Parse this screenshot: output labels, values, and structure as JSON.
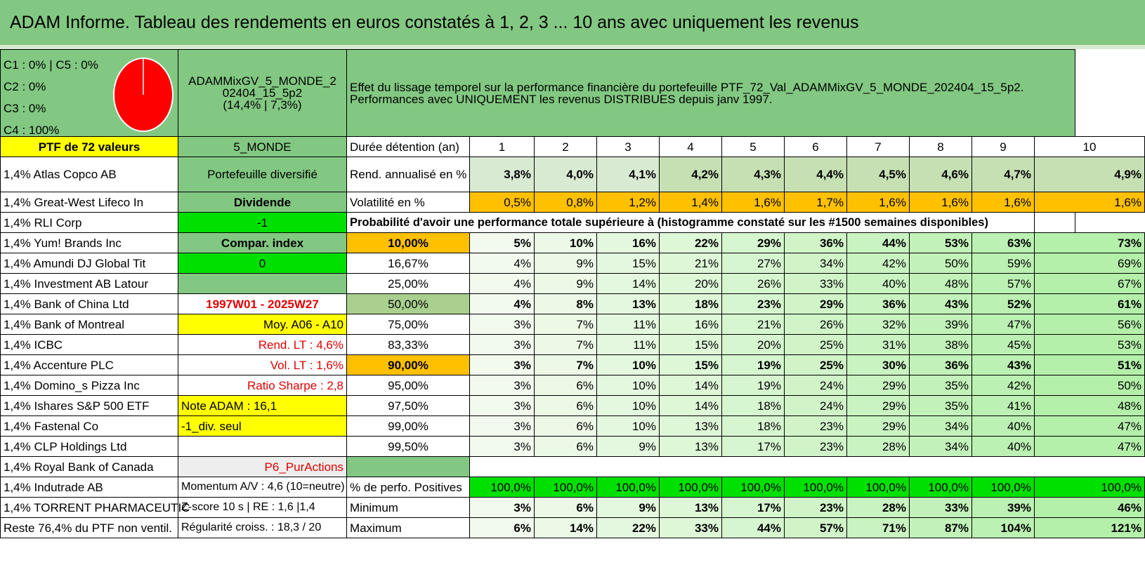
{
  "title": "ADAM Informe. Tableau des rendements en euros constatés à 1, 2, 3 ... 10 ans avec uniquement les revenus",
  "pie": {
    "labels": [
      "C1 : 0% | C5 : 0%",
      "C2 : 0%",
      "C3 : 0%",
      "C4 : 100%"
    ],
    "color": "#ff0000"
  },
  "portfolio": {
    "name": "ADAMMixGV_5_MONDE_202404_15_5p2",
    "name_line1": "ADAMMixGV_5_MONDE_2",
    "name_line2": "02404_15_5p2",
    "perf": "(14,4% | 7,3%)",
    "description_line1": "Effet du lissage temporel sur la performance financière du portefeuille PTF_72_Val_ADAMMixGV_5_MONDE_202404_15_5p2.",
    "description_line2": "Performances avec UNIQUEMENT les revenus DISTRIBUES depuis janv 1997."
  },
  "ptf_label": "PTF de 72 valeurs",
  "zone_label": "5_MONDE",
  "holdings": [
    "1,4% Atlas Copco AB",
    "1,4% Great-West Lifeco In",
    "1,4% RLI Corp",
    "1,4% Yum! Brands Inc",
    "1,4% Amundi DJ Global Tit",
    "1,4% Investment AB Latour",
    "1,4% Bank of China Ltd",
    "1,4% Bank of Montreal",
    "1,4% ICBC",
    "1,4% Accenture PLC",
    "1,4% Domino_s Pizza Inc",
    "1,4% Ishares S&P 500 ETF",
    "1,4% Fastenal Co",
    "1,4% CLP Holdings Ltd",
    "1,4% Royal Bank of Canada",
    "1,4% Indutrade AB",
    "1,4% TORRENT PHARMACEUTIC",
    "Reste 76,4% du PTF non ventil."
  ],
  "info": {
    "diversified": "Portefeuille diversifié",
    "dividend": "Dividende",
    "neg_one": "-1",
    "compar_index": "Compar. index",
    "zero": "0",
    "period": "1997W01 - 2025W27",
    "moy": "Moy. A06 - A10",
    "rend_lt": "Rend. LT : 4,6%",
    "vol_lt": "Vol. LT : 1,6%",
    "sharpe": "Ratio Sharpe : 2,8",
    "note": "Note ADAM : 16,1",
    "div_only": "-1_div. seul",
    "p6": "P6_PurActions",
    "momentum": "Momentum A/V : 4,6 (10=neutre)",
    "zscore": "Z-score 10 s | RE : 1,6 |1,4",
    "regularite": "Régularité croiss. : 18,3 / 20"
  },
  "table": {
    "duration_label": "Durée détention (an)",
    "years": [
      "1",
      "2",
      "3",
      "4",
      "5",
      "6",
      "7",
      "8",
      "9",
      "10"
    ],
    "rend_label": "Rend. annualisé en %",
    "rend": [
      "3,8%",
      "4,0%",
      "4,1%",
      "4,2%",
      "4,3%",
      "4,4%",
      "4,5%",
      "4,6%",
      "4,7%",
      "4,9%"
    ],
    "vol_label": "Volatilité en %",
    "vol": [
      "0,5%",
      "0,8%",
      "1,2%",
      "1,4%",
      "1,6%",
      "1,7%",
      "1,6%",
      "1,6%",
      "1,6%",
      "1,6%"
    ],
    "prob_label": "Probabilité d'avoir une performance totale supérieure à (histogramme constaté sur les #1500 semaines disponibles)",
    "quantiles": [
      {
        "q": "10,00%",
        "vals": [
          "5%",
          "10%",
          "16%",
          "22%",
          "29%",
          "36%",
          "44%",
          "53%",
          "63%",
          "73%"
        ]
      },
      {
        "q": "16,67%",
        "vals": [
          "4%",
          "9%",
          "15%",
          "21%",
          "27%",
          "34%",
          "42%",
          "50%",
          "59%",
          "69%"
        ]
      },
      {
        "q": "25,00%",
        "vals": [
          "4%",
          "9%",
          "14%",
          "20%",
          "26%",
          "33%",
          "40%",
          "48%",
          "57%",
          "67%"
        ]
      },
      {
        "q": "50,00%",
        "vals": [
          "4%",
          "8%",
          "13%",
          "18%",
          "23%",
          "29%",
          "36%",
          "43%",
          "52%",
          "61%"
        ]
      },
      {
        "q": "75,00%",
        "vals": [
          "3%",
          "7%",
          "11%",
          "16%",
          "21%",
          "26%",
          "32%",
          "39%",
          "47%",
          "56%"
        ]
      },
      {
        "q": "83,33%",
        "vals": [
          "3%",
          "7%",
          "11%",
          "15%",
          "20%",
          "25%",
          "31%",
          "38%",
          "45%",
          "53%"
        ]
      },
      {
        "q": "90,00%",
        "vals": [
          "3%",
          "7%",
          "10%",
          "15%",
          "19%",
          "25%",
          "30%",
          "36%",
          "43%",
          "51%"
        ]
      },
      {
        "q": "95,00%",
        "vals": [
          "3%",
          "6%",
          "10%",
          "14%",
          "19%",
          "24%",
          "29%",
          "35%",
          "42%",
          "50%"
        ]
      },
      {
        "q": "97,50%",
        "vals": [
          "3%",
          "6%",
          "10%",
          "14%",
          "18%",
          "24%",
          "29%",
          "35%",
          "41%",
          "48%"
        ]
      },
      {
        "q": "99,00%",
        "vals": [
          "3%",
          "6%",
          "10%",
          "13%",
          "18%",
          "23%",
          "29%",
          "34%",
          "40%",
          "47%"
        ]
      },
      {
        "q": "99,50%",
        "vals": [
          "3%",
          "6%",
          "9%",
          "13%",
          "17%",
          "23%",
          "28%",
          "34%",
          "40%",
          "47%"
        ]
      }
    ],
    "pos_label": "% de perfo. Positives",
    "pos": [
      "100,0%",
      "100,0%",
      "100,0%",
      "100,0%",
      "100,0%",
      "100,0%",
      "100,0%",
      "100,0%",
      "100,0%",
      "100,0%"
    ],
    "min_label": "Minimum",
    "min": [
      "3%",
      "6%",
      "9%",
      "13%",
      "17%",
      "23%",
      "28%",
      "33%",
      "39%",
      "46%"
    ],
    "max_label": "Maximum",
    "max": [
      "6%",
      "14%",
      "22%",
      "33%",
      "44%",
      "57%",
      "71%",
      "87%",
      "104%",
      "121%"
    ]
  }
}
